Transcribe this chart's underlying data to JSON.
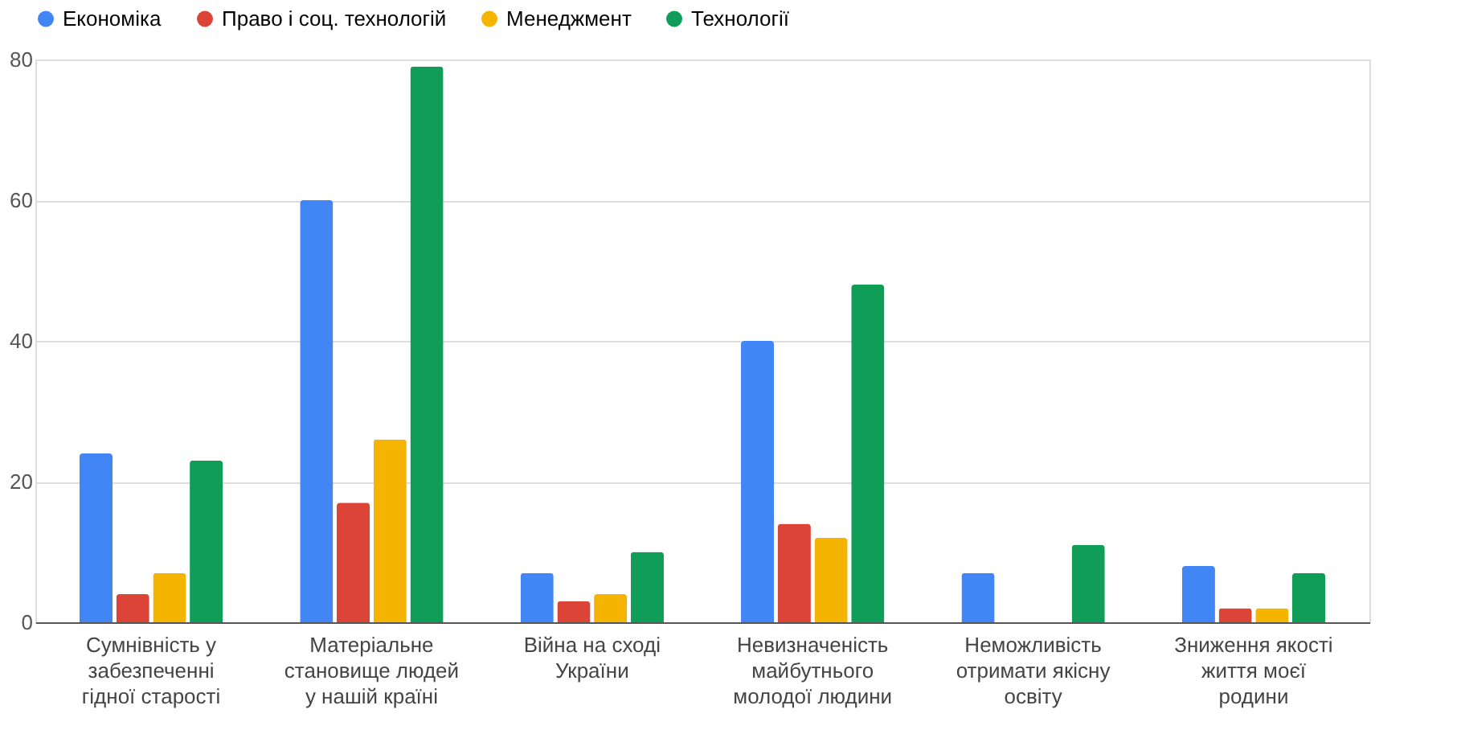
{
  "chart_data": {
    "type": "bar",
    "categories": [
      "Сумнівність у\nзабезпеченні\nгідної старості",
      "Матеріальне\nстановище людей\nу нашій країні",
      "Війна на сході\nУкраїни",
      "Невизначеність\nмайбутнього\nмолодої людини",
      "Неможливість\nотримати якісну\nосвіту",
      "Зниження якості\nжиття моєї\nродини"
    ],
    "series": [
      {
        "name": "Економіка",
        "color": "#4285f4",
        "values": [
          24,
          60,
          7,
          40,
          7,
          8
        ]
      },
      {
        "name": "Право і соц. технологій",
        "color": "#db4437",
        "values": [
          4,
          17,
          3,
          14,
          null,
          2
        ]
      },
      {
        "name": "Менеджмент",
        "color": "#f4b400",
        "values": [
          7,
          26,
          4,
          12,
          null,
          2
        ]
      },
      {
        "name": "Технології",
        "color": "#0f9d58",
        "values": [
          23,
          79,
          10,
          48,
          11,
          7
        ]
      }
    ],
    "ylim": [
      0,
      80
    ],
    "yticks": [
      0,
      20,
      40,
      60,
      80
    ],
    "grid": "y",
    "legend": "top"
  }
}
